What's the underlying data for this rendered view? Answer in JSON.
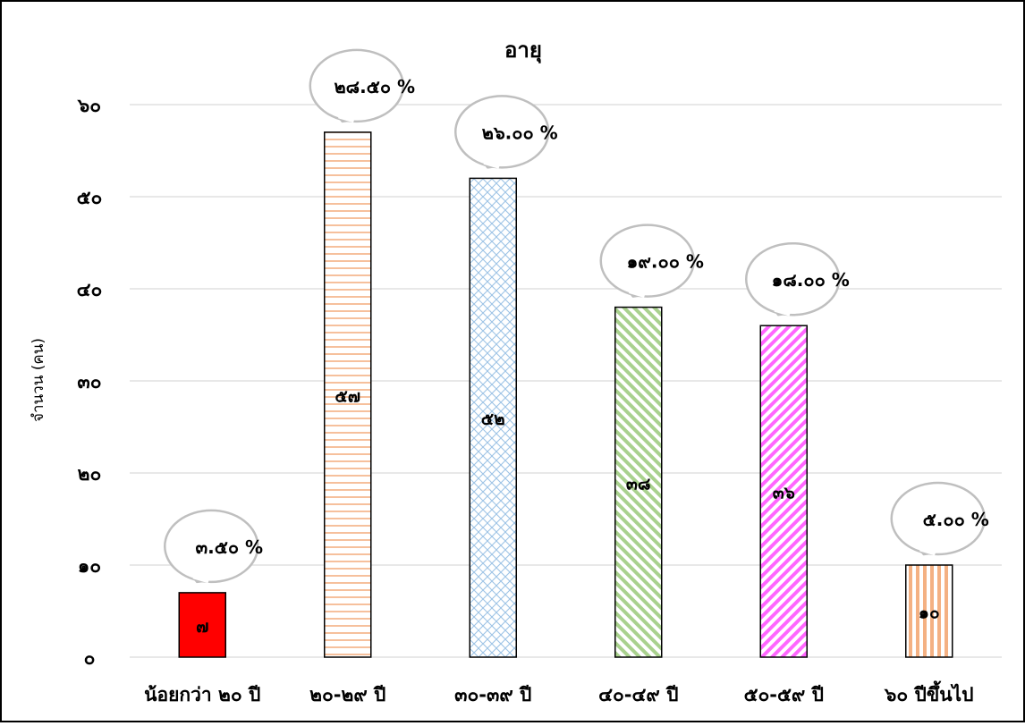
{
  "chart_data": {
    "type": "bar",
    "title": "อายุ",
    "xlabel": "",
    "ylabel": "จำนวน (คน)",
    "ylim": [
      0,
      60
    ],
    "y_ticks": [
      "๐",
      "๑๐",
      "๒๐",
      "๓๐",
      "๔๐",
      "๕๐",
      "๖๐"
    ],
    "grid": true,
    "legend": "none",
    "categories": [
      "น้อยกว่า ๒๐ ปี",
      "๒๐-๒๙ ปี",
      "๓๐-๓๙ ปี",
      "๔๐-๔๙ ปี",
      "๕๐-๕๙ ปี",
      "๖๐ ปีขึ้นไป"
    ],
    "values": [
      7,
      57,
      52,
      38,
      36,
      10
    ],
    "value_labels": [
      "๗",
      "๕๗",
      "๕๒",
      "๓๘",
      "๓๖",
      "๑๐"
    ],
    "percent_labels": [
      "๓.๕๐ %",
      "๒๘.๕๐ %",
      "๒๖.๐๐ %",
      "๑๙.๐๐ %",
      "๑๘.๐๐ %",
      "๕.๐๐ %"
    ],
    "bar_styles": [
      {
        "pattern": "solid",
        "color": "#ff0000"
      },
      {
        "pattern": "horizontal-lines",
        "color": "#f4b183"
      },
      {
        "pattern": "crosshatch",
        "color": "#9dc3e6"
      },
      {
        "pattern": "diagonal-lines",
        "color": "#a9d18e"
      },
      {
        "pattern": "diagonal-lines-reverse",
        "color": "#ff66ff"
      },
      {
        "pattern": "vertical-lines",
        "color": "#f4b183"
      }
    ]
  }
}
